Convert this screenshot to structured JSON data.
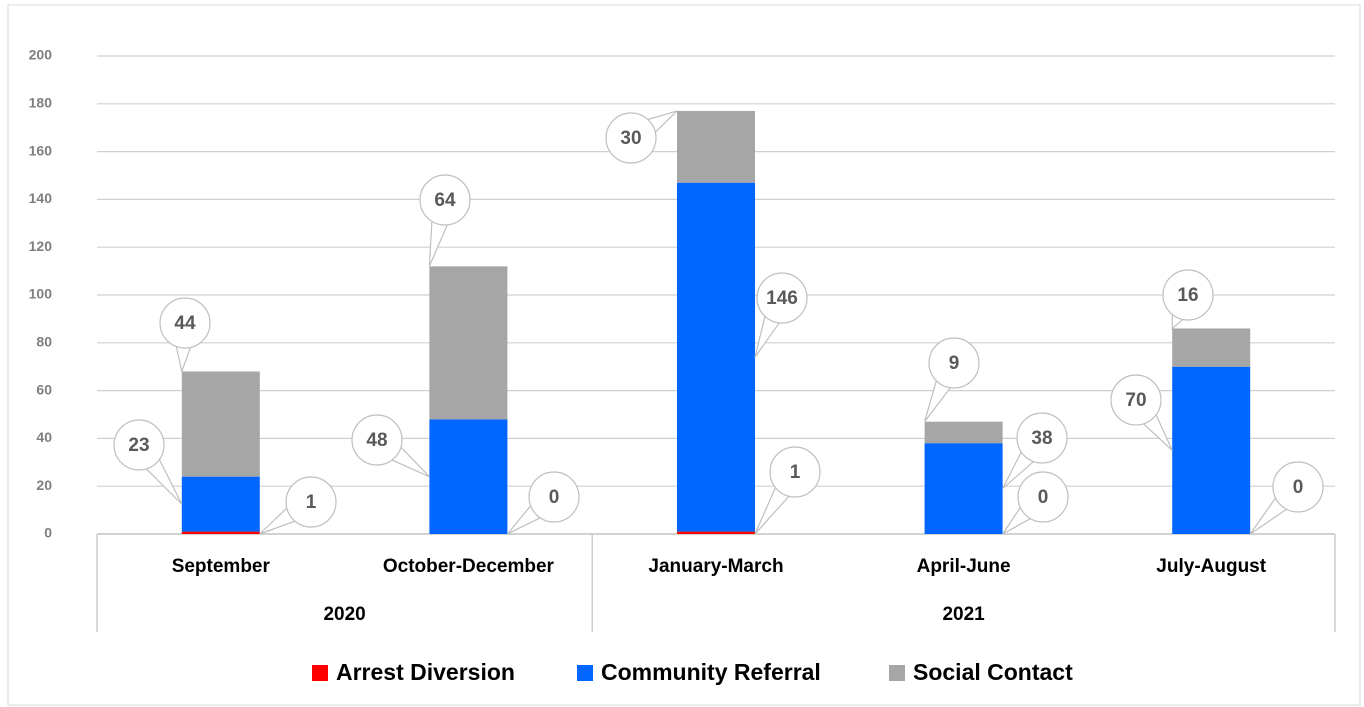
{
  "chart_data": {
    "type": "stacked_bar",
    "categories": [
      "September",
      "October-December",
      "January-March",
      "April-June",
      "July-August"
    ],
    "category_groups": [
      "2020",
      "2020",
      "2021",
      "2021",
      "2021"
    ],
    "series": [
      {
        "name": "Arrest Diversion",
        "color": "#ff0000",
        "values": [
          1,
          0,
          1,
          0,
          0
        ]
      },
      {
        "name": "Community Referral",
        "color": "#0066ff",
        "values": [
          23,
          48,
          146,
          38,
          70
        ]
      },
      {
        "name": "Social Contact",
        "color": "#a6a6a6",
        "values": [
          44,
          64,
          30,
          9,
          16
        ]
      }
    ],
    "ylim": [
      0,
      200
    ],
    "yticks": [
      0,
      20,
      40,
      60,
      80,
      100,
      120,
      140,
      160,
      180,
      200
    ],
    "grid": true,
    "legend": "bottom"
  }
}
